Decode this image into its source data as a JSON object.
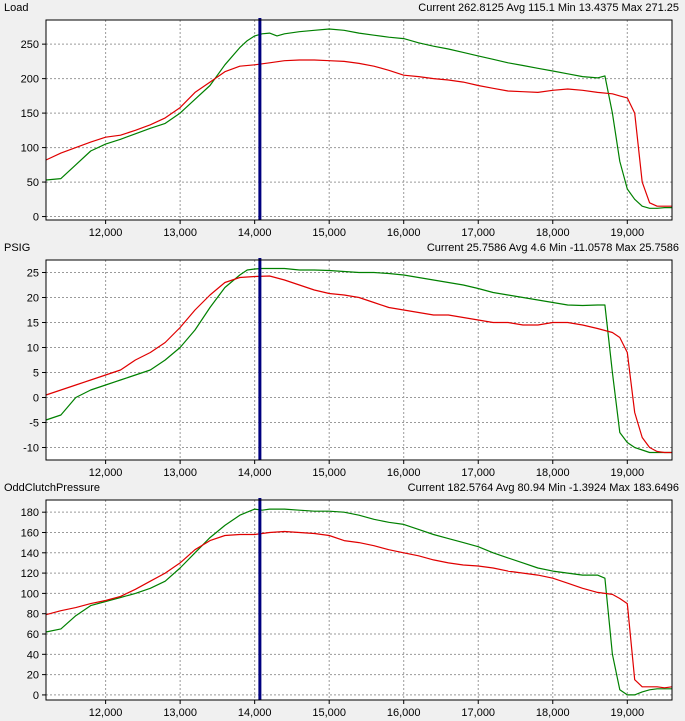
{
  "panels": [
    {
      "name": "Load",
      "stats": "Current 262.8125 Avg 115.1 Min 13.4375 Max 271.25"
    },
    {
      "name": "PSIG",
      "stats": "Current 25.7586 Avg 4.6 Min -11.0578 Max 25.7586"
    },
    {
      "name": "OddClutchPressure",
      "stats": "Current 182.5764 Avg 80.94 Min -1.3924 Max 183.6496"
    }
  ],
  "colors": {
    "green": "#008000",
    "red": "#e00000",
    "cursor": "#000080",
    "grid": "#9a9a9a"
  },
  "chart_data": [
    {
      "type": "line",
      "title": "Load",
      "cursor_x": 14070,
      "xlim": [
        11200,
        19600
      ],
      "xticks": [
        12000,
        13000,
        14000,
        15000,
        16000,
        17000,
        18000,
        19000
      ],
      "xtick_labels": [
        "12,000",
        "13,000",
        "14,000",
        "15,000",
        "16,000",
        "17,000",
        "18,000",
        "19,000"
      ],
      "ylim": [
        -5,
        285
      ],
      "yticks": [
        0,
        50,
        100,
        150,
        200,
        250
      ],
      "series": [
        {
          "color": "green",
          "x": [
            11200,
            11400,
            11600,
            11800,
            12000,
            12200,
            12400,
            12600,
            12800,
            13000,
            13200,
            13400,
            13600,
            13800,
            13900,
            14000,
            14100,
            14200,
            14300,
            14400,
            14600,
            14800,
            15000,
            15200,
            15400,
            15600,
            15800,
            16000,
            16200,
            16400,
            16600,
            16800,
            17000,
            17200,
            17400,
            17600,
            17800,
            18000,
            18200,
            18400,
            18600,
            18700,
            18800,
            18900,
            19000,
            19100,
            19200,
            19300,
            19400,
            19500,
            19600
          ],
          "y": [
            53,
            55,
            75,
            95,
            105,
            112,
            120,
            128,
            135,
            150,
            170,
            190,
            220,
            245,
            255,
            262,
            265,
            266,
            262,
            265,
            268,
            270,
            272,
            270,
            266,
            263,
            260,
            258,
            252,
            247,
            243,
            238,
            233,
            228,
            223,
            219,
            215,
            211,
            207,
            203,
            201,
            204,
            150,
            80,
            40,
            25,
            15,
            12,
            12,
            13,
            13
          ]
        },
        {
          "color": "red",
          "x": [
            11200,
            11400,
            11600,
            11800,
            12000,
            12200,
            12400,
            12600,
            12800,
            13000,
            13200,
            13400,
            13600,
            13800,
            14000,
            14200,
            14400,
            14600,
            14800,
            15000,
            15200,
            15400,
            15600,
            15800,
            16000,
            16200,
            16400,
            16600,
            16800,
            17000,
            17200,
            17400,
            17600,
            17800,
            18000,
            18200,
            18400,
            18600,
            18800,
            18900,
            19000,
            19100,
            19200,
            19300,
            19400,
            19500,
            19600
          ],
          "y": [
            82,
            92,
            100,
            108,
            115,
            118,
            125,
            133,
            143,
            158,
            180,
            195,
            210,
            218,
            220,
            223,
            226,
            227,
            227,
            226,
            225,
            222,
            218,
            212,
            205,
            203,
            200,
            198,
            195,
            190,
            186,
            182,
            181,
            180,
            183,
            185,
            183,
            180,
            178,
            175,
            172,
            150,
            50,
            20,
            15,
            15,
            15
          ]
        }
      ]
    },
    {
      "type": "line",
      "title": "PSIG",
      "cursor_x": 14070,
      "xlim": [
        11200,
        19600
      ],
      "xticks": [
        12000,
        13000,
        14000,
        15000,
        16000,
        17000,
        18000,
        19000
      ],
      "xtick_labels": [
        "12,000",
        "13,000",
        "14,000",
        "15,000",
        "16,000",
        "17,000",
        "18,000",
        "19,000"
      ],
      "ylim": [
        -12.5,
        27.5
      ],
      "yticks": [
        -10,
        -5,
        0,
        5,
        10,
        15,
        20,
        25
      ],
      "series": [
        {
          "color": "green",
          "x": [
            11200,
            11400,
            11600,
            11800,
            12000,
            12200,
            12400,
            12600,
            12800,
            13000,
            13200,
            13400,
            13600,
            13800,
            13900,
            14000,
            14100,
            14200,
            14400,
            14600,
            14800,
            15000,
            15200,
            15400,
            15600,
            15800,
            16000,
            16200,
            16400,
            16600,
            16800,
            17000,
            17200,
            17400,
            17600,
            17800,
            18000,
            18200,
            18400,
            18600,
            18700,
            18800,
            18900,
            19000,
            19100,
            19200,
            19300,
            19400,
            19500,
            19600
          ],
          "y": [
            -4.5,
            -3.5,
            0,
            1.5,
            2.5,
            3.5,
            4.5,
            5.5,
            7.5,
            10,
            13.5,
            18,
            22,
            24.5,
            25.5,
            25.7,
            25.8,
            25.8,
            25.8,
            25.5,
            25.5,
            25.4,
            25.2,
            25,
            25,
            24.8,
            24.5,
            24,
            23.5,
            23,
            22.5,
            21.8,
            21,
            20.5,
            20,
            19.5,
            19,
            18.5,
            18.4,
            18.5,
            18.5,
            5,
            -7,
            -9,
            -10,
            -10.5,
            -11,
            -11,
            -11,
            -11
          ]
        },
        {
          "color": "red",
          "x": [
            11200,
            11400,
            11600,
            11800,
            12000,
            12200,
            12400,
            12600,
            12800,
            13000,
            13200,
            13400,
            13600,
            13800,
            14000,
            14200,
            14400,
            14600,
            14800,
            15000,
            15200,
            15400,
            15600,
            15800,
            16000,
            16200,
            16400,
            16600,
            16800,
            17000,
            17200,
            17400,
            17600,
            17800,
            18000,
            18200,
            18400,
            18600,
            18800,
            18900,
            19000,
            19100,
            19200,
            19300,
            19400,
            19500,
            19600
          ],
          "y": [
            0.5,
            1.5,
            2.5,
            3.5,
            4.5,
            5.5,
            7.5,
            9,
            11,
            14,
            17.5,
            20.5,
            23,
            24,
            24.2,
            24.3,
            23.5,
            22.5,
            21.5,
            20.8,
            20.5,
            20,
            19,
            18,
            17.5,
            17,
            16.5,
            16.5,
            16,
            15.5,
            15,
            15,
            14.5,
            14.5,
            15,
            15,
            14.5,
            13.8,
            13,
            12,
            9,
            -3,
            -8,
            -10,
            -10.8,
            -11,
            -11
          ]
        }
      ]
    },
    {
      "type": "line",
      "title": "OddClutchPressure",
      "cursor_x": 14070,
      "xlim": [
        11200,
        19600
      ],
      "xticks": [
        12000,
        13000,
        14000,
        15000,
        16000,
        17000,
        18000,
        19000
      ],
      "xtick_labels": [
        "12,000",
        "13,000",
        "14,000",
        "15,000",
        "16,000",
        "17,000",
        "18,000",
        "19,000"
      ],
      "ylim": [
        -5,
        192
      ],
      "yticks": [
        0,
        20,
        40,
        60,
        80,
        100,
        120,
        140,
        160,
        180
      ],
      "series": [
        {
          "color": "green",
          "x": [
            11200,
            11400,
            11600,
            11800,
            12000,
            12200,
            12400,
            12600,
            12800,
            13000,
            13200,
            13400,
            13600,
            13800,
            14000,
            14100,
            14200,
            14400,
            14600,
            14800,
            15000,
            15200,
            15400,
            15600,
            15800,
            16000,
            16200,
            16400,
            16600,
            16800,
            17000,
            17200,
            17400,
            17600,
            17800,
            18000,
            18200,
            18400,
            18600,
            18700,
            18800,
            18900,
            19000,
            19100,
            19200,
            19300,
            19400,
            19500,
            19600
          ],
          "y": [
            62,
            65,
            78,
            88,
            92,
            96,
            100,
            105,
            112,
            125,
            140,
            155,
            167,
            177,
            183,
            182,
            183,
            183,
            182,
            181,
            181,
            180,
            177,
            173,
            170,
            168,
            163,
            158,
            154,
            150,
            146,
            140,
            135,
            130,
            125,
            122,
            120,
            118,
            118,
            115,
            40,
            5,
            0,
            0,
            3,
            5,
            6,
            6,
            6
          ]
        },
        {
          "color": "red",
          "x": [
            11200,
            11400,
            11600,
            11800,
            12000,
            12200,
            12400,
            12600,
            12800,
            13000,
            13200,
            13400,
            13600,
            13800,
            14000,
            14200,
            14400,
            14600,
            14800,
            15000,
            15200,
            15400,
            15600,
            15800,
            16000,
            16200,
            16400,
            16600,
            16800,
            17000,
            17200,
            17400,
            17600,
            17800,
            18000,
            18200,
            18400,
            18600,
            18800,
            18900,
            19000,
            19100,
            19200,
            19300,
            19400,
            19500,
            19600
          ],
          "y": [
            79,
            83,
            86,
            90,
            93,
            97,
            104,
            112,
            120,
            130,
            143,
            152,
            157,
            158,
            158,
            160,
            161,
            160,
            159,
            157,
            152,
            150,
            147,
            143,
            140,
            137,
            133,
            130,
            128,
            127,
            125,
            122,
            120,
            118,
            115,
            110,
            105,
            101,
            99,
            95,
            90,
            15,
            8,
            8,
            8,
            7,
            8
          ]
        }
      ]
    }
  ]
}
